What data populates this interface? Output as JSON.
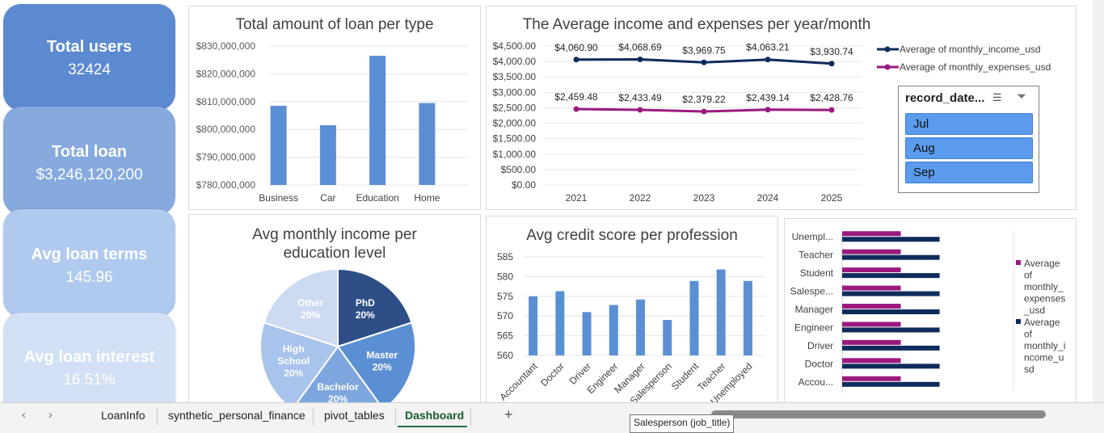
{
  "kpis": [
    {
      "title": "Total users",
      "value": "32424"
    },
    {
      "title": "Total loan",
      "value": "$3,246,120,200"
    },
    {
      "title": "Avg loan terms",
      "value": "145.96"
    },
    {
      "title": "Avg loan interest",
      "value": "16.51%"
    }
  ],
  "slicer": {
    "title": "record_date...",
    "items": [
      "Jul",
      "Aug",
      "Sep"
    ]
  },
  "tabs": {
    "nav_prev": "‹",
    "nav_next": "›",
    "items": [
      "LoanInfo",
      "synthetic_personal_finance",
      "pivot_tables",
      "Dashboard"
    ],
    "add": "+"
  },
  "tooltip": "Salesperson (job_title)",
  "colors": {
    "bar_blue": "#5b8fd3",
    "navy": "#0f2b5b",
    "magenta": "#9b1a7e",
    "pie_phd": "#2d4e86",
    "pie_master": "#5b8fd3",
    "pie_bachelor": "#7ea6de",
    "pie_highschool": "#a8c3ec",
    "pie_other": "#ccdaf2"
  },
  "chart_data": [
    {
      "type": "bar",
      "title": "Total amount of loan per type",
      "categories": [
        "Business",
        "Car",
        "Education",
        "Home"
      ],
      "values": [
        808500000,
        801500000,
        826500000,
        809500000
      ],
      "ylim": [
        780000000,
        830000000
      ],
      "yticks": [
        "$830,000,000",
        "$820,000,000",
        "$810,000,000",
        "$800,000,000",
        "$790,000,000",
        "$780,000,000"
      ]
    },
    {
      "type": "line",
      "title": "The Average income and expenses per year/month",
      "x": [
        "2021",
        "2022",
        "2023",
        "2024",
        "2025"
      ],
      "ylim": [
        0,
        4500
      ],
      "yticks": [
        "$4,500.00",
        "$4,000.00",
        "$3,500.00",
        "$3,000.00",
        "$2,500.00",
        "$2,000.00",
        "$1,500.00",
        "$1,000.00",
        "$500.00",
        "$0.00"
      ],
      "series": [
        {
          "name": "Average of monthly_income_usd",
          "values": [
            4060.9,
            4068.69,
            3969.75,
            4063.21,
            3930.74
          ],
          "labels": [
            "$4,060.90",
            "$4,068.69",
            "$3,969.75",
            "$4,063.21",
            "$3,930.74"
          ]
        },
        {
          "name": "Average of monthly_expenses_usd",
          "values": [
            2459.48,
            2433.49,
            2379.22,
            2439.14,
            2428.76
          ],
          "labels": [
            "$2,459.48",
            "$2,433.49",
            "$2,379.22",
            "$2,439.14",
            "$2,428.76"
          ]
        }
      ],
      "legend": "right"
    },
    {
      "type": "pie",
      "title_line1": "Avg monthly income per",
      "title_line2": "education level",
      "slices": [
        {
          "label": "PhD",
          "pct": "20%",
          "value": 20
        },
        {
          "label": "Master",
          "pct": "20%",
          "value": 20
        },
        {
          "label": "Bachelor",
          "pct": "20%",
          "value": 20
        },
        {
          "label": "High School",
          "pct": "20%",
          "value": 20
        },
        {
          "label": "Other",
          "pct": "20%",
          "value": 20
        }
      ]
    },
    {
      "type": "bar",
      "title": "Avg credit score per profession",
      "categories": [
        "Accountant",
        "Doctor",
        "Driver",
        "Engineer",
        "Manager",
        "Salesperson",
        "Student",
        "Teacher",
        "Unemployed"
      ],
      "values": [
        575,
        576.3,
        571,
        572.8,
        574.2,
        569,
        578.9,
        581.8,
        578.9
      ],
      "ylim": [
        560,
        585
      ],
      "yticks": [
        "585",
        "580",
        "575",
        "570",
        "565",
        "560"
      ]
    },
    {
      "type": "bar",
      "orientation": "horizontal",
      "categories": [
        "Accou...",
        "Doctor",
        "Driver",
        "Engineer",
        "Manager",
        "Salespe...",
        "Student",
        "Teacher",
        "Unempl..."
      ],
      "series": [
        {
          "name": "Average of monthly_expenses_usd",
          "values": [
            2430,
            2430,
            2430,
            2430,
            2430,
            2430,
            2430,
            2430,
            2430
          ]
        },
        {
          "name": "Average of monthly_income_usd",
          "values": [
            4040,
            4040,
            4040,
            4040,
            4040,
            4040,
            4040,
            4040,
            4040
          ]
        }
      ],
      "legend": "right",
      "legend_lines_expenses": [
        "Average",
        "of",
        "monthly_",
        "expenses",
        "_usd"
      ],
      "legend_lines_income": [
        "Average",
        "of",
        "monthly_i",
        "ncome_u",
        "sd"
      ]
    }
  ]
}
